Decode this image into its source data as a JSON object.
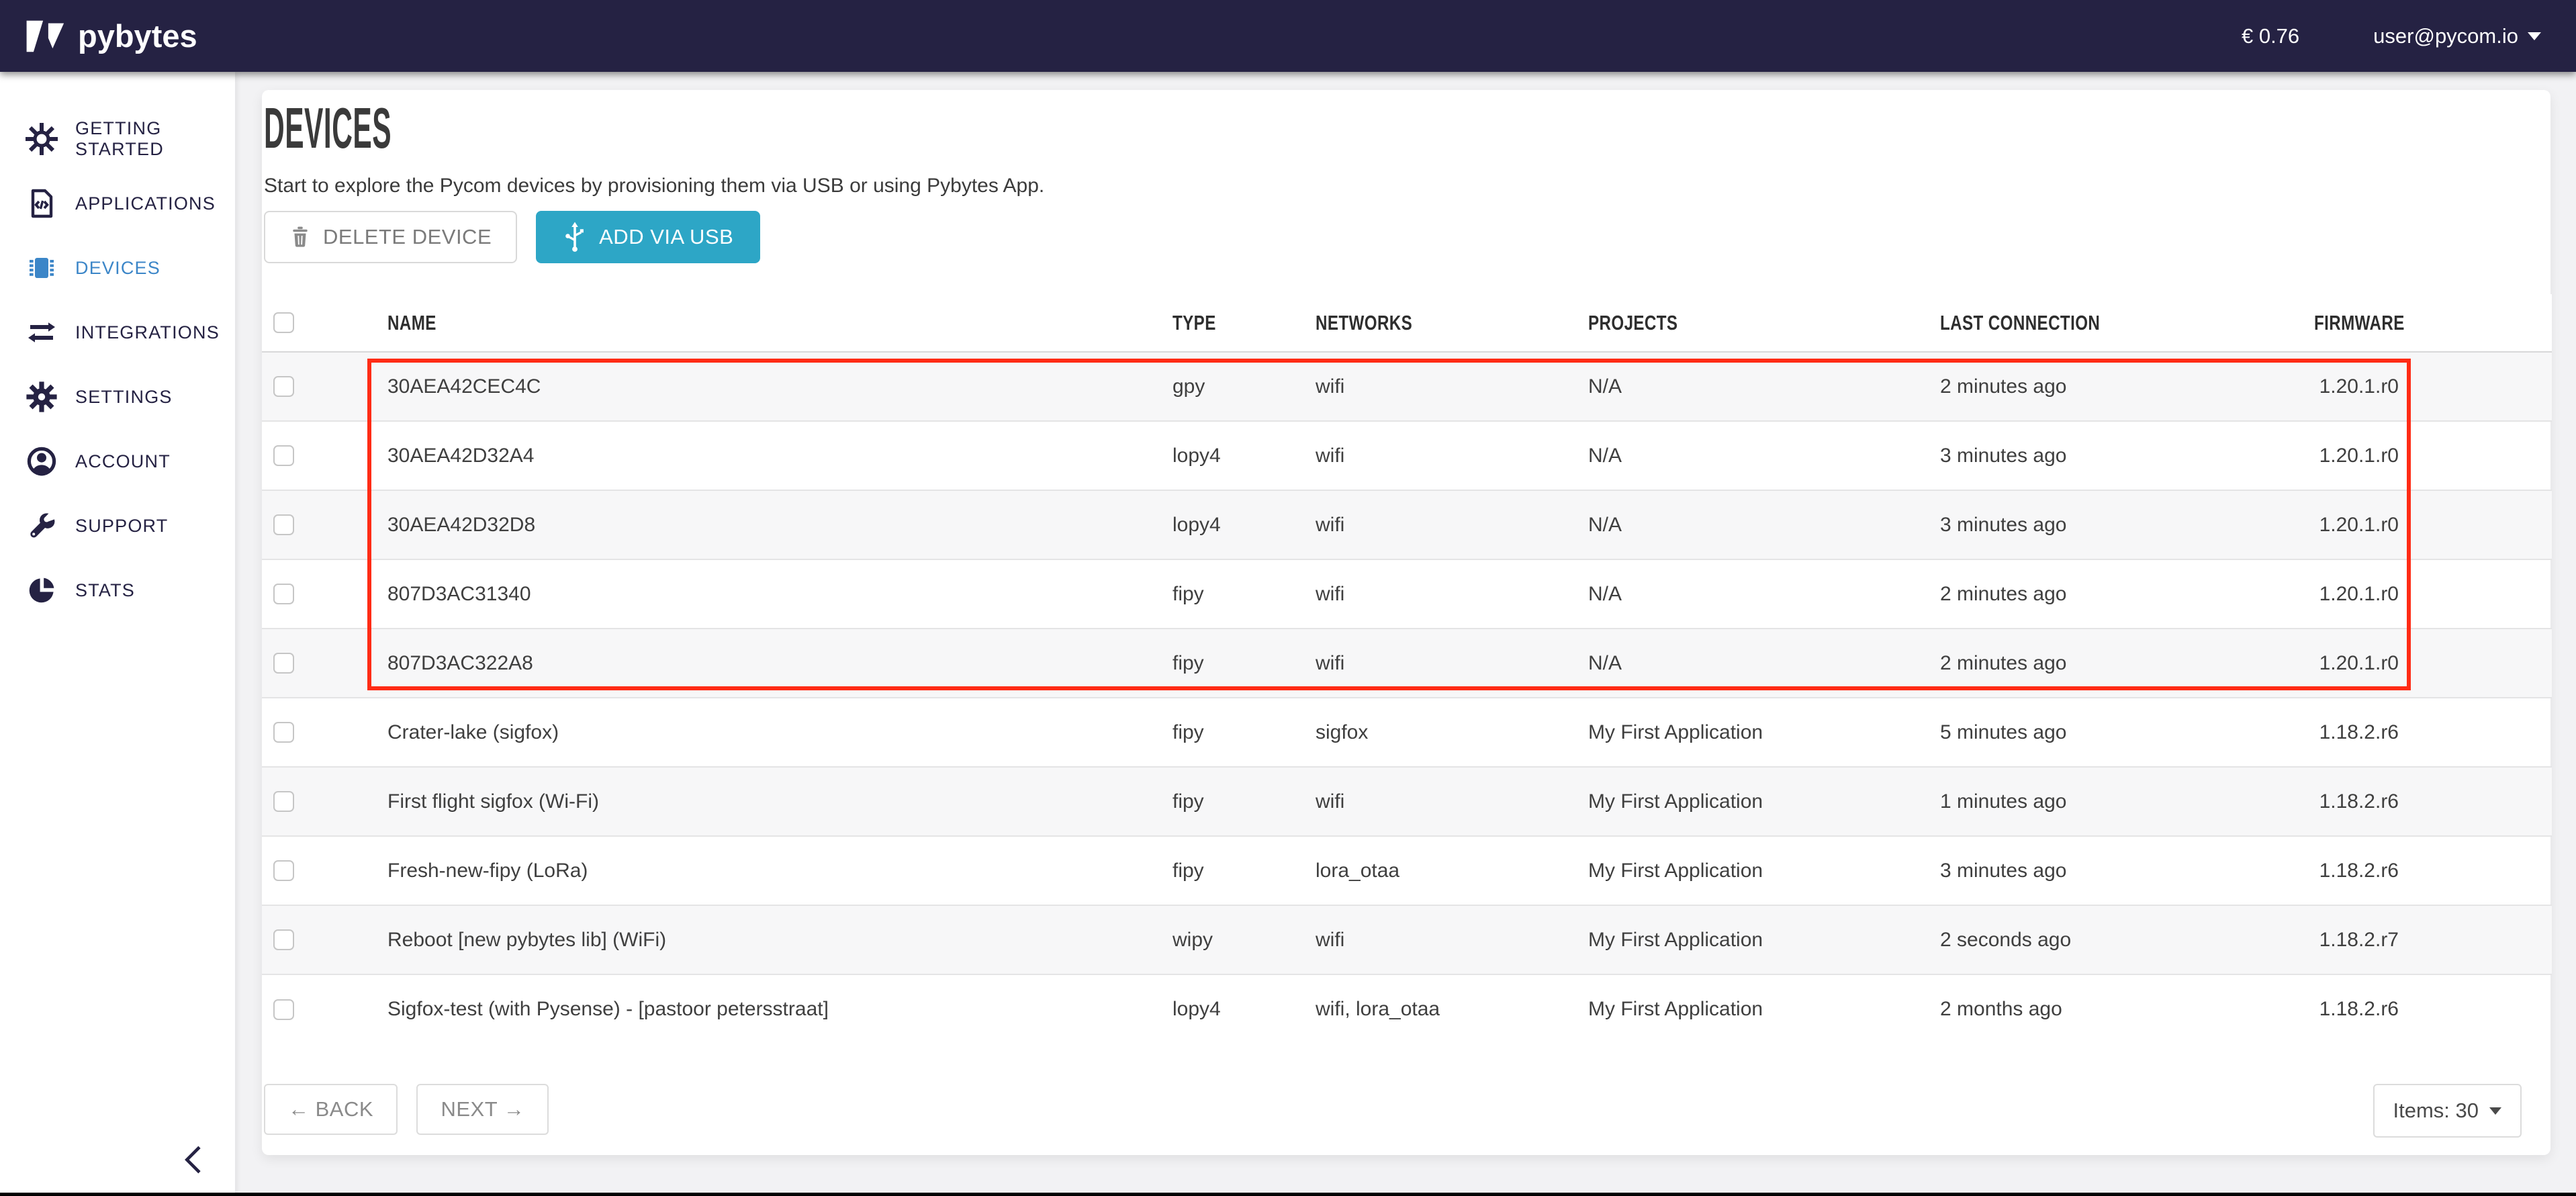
{
  "topbar": {
    "logo_text": "pybytes",
    "balance": "€ 0.76",
    "user_email": "user@pycom.io"
  },
  "sidebar": {
    "items": [
      {
        "label": "GETTING STARTED",
        "icon": "sun-icon",
        "active": false
      },
      {
        "label": "APPLICATIONS",
        "icon": "code-file-icon",
        "active": false
      },
      {
        "label": "DEVICES",
        "icon": "chip-icon",
        "active": true
      },
      {
        "label": "INTEGRATIONS",
        "icon": "arrows-swap-icon",
        "active": false
      },
      {
        "label": "SETTINGS",
        "icon": "gear-icon",
        "active": false
      },
      {
        "label": "ACCOUNT",
        "icon": "person-icon",
        "active": false
      },
      {
        "label": "SUPPORT",
        "icon": "wrench-icon",
        "active": false
      },
      {
        "label": "STATS",
        "icon": "pie-chart-icon",
        "active": false
      }
    ]
  },
  "page": {
    "title": "DEVICES",
    "subtitle": "Start to explore the Pycom devices by provisioning them via USB or using Pybytes App."
  },
  "toolbar": {
    "delete_label": "DELETE DEVICE",
    "add_label": "ADD VIA USB"
  },
  "table": {
    "columns": [
      "NAME",
      "TYPE",
      "NETWORKS",
      "PROJECTS",
      "LAST CONNECTION",
      "FIRMWARE"
    ],
    "rows": [
      {
        "name": "30AEA42CEC4C",
        "type": "gpy",
        "networks": "wifi",
        "projects": "N/A",
        "last_connection": "2 minutes ago",
        "firmware": "1.20.1.r0"
      },
      {
        "name": "30AEA42D32A4",
        "type": "lopy4",
        "networks": "wifi",
        "projects": "N/A",
        "last_connection": "3 minutes ago",
        "firmware": "1.20.1.r0"
      },
      {
        "name": "30AEA42D32D8",
        "type": "lopy4",
        "networks": "wifi",
        "projects": "N/A",
        "last_connection": "3 minutes ago",
        "firmware": "1.20.1.r0"
      },
      {
        "name": "807D3AC31340",
        "type": "fipy",
        "networks": "wifi",
        "projects": "N/A",
        "last_connection": "2 minutes ago",
        "firmware": "1.20.1.r0"
      },
      {
        "name": "807D3AC322A8",
        "type": "fipy",
        "networks": "wifi",
        "projects": "N/A",
        "last_connection": "2 minutes ago",
        "firmware": "1.20.1.r0"
      },
      {
        "name": "Crater-lake (sigfox)",
        "type": "fipy",
        "networks": "sigfox",
        "projects": "My First Application",
        "last_connection": "5 minutes ago",
        "firmware": "1.18.2.r6"
      },
      {
        "name": "First flight sigfox (Wi-Fi)",
        "type": "fipy",
        "networks": "wifi",
        "projects": "My First Application",
        "last_connection": "1 minutes ago",
        "firmware": "1.18.2.r6"
      },
      {
        "name": "Fresh-new-fipy (LoRa)",
        "type": "fipy",
        "networks": "lora_otaa",
        "projects": "My First Application",
        "last_connection": "3 minutes ago",
        "firmware": "1.18.2.r6"
      },
      {
        "name": "Reboot [new pybytes lib] (WiFi)",
        "type": "wipy",
        "networks": "wifi",
        "projects": "My First Application",
        "last_connection": "2 seconds ago",
        "firmware": "1.18.2.r7"
      },
      {
        "name": "Sigfox-test (with Pysense) - [pastoor petersstraat]",
        "type": "lopy4",
        "networks": "wifi, lora_otaa",
        "projects": "My First Application",
        "last_connection": "2 months ago",
        "firmware": "1.18.2.r6"
      }
    ]
  },
  "highlight": {
    "type": "selection-box",
    "color": "#ff2b15",
    "rows_highlighted": [
      "30AEA42CEC4C",
      "30AEA42D32A4",
      "30AEA42D32D8",
      "807D3AC31340",
      "807D3AC322A8"
    ]
  },
  "pagination": {
    "back_label": "← BACK",
    "next_label": "NEXT →",
    "items_label": "Items: 30"
  },
  "colors": {
    "topbar_navy": "#252243",
    "sidebar_active_blue": "#3c86c8",
    "add_button_teal": "#2da6c6",
    "highlight_red": "#ff2b15"
  }
}
